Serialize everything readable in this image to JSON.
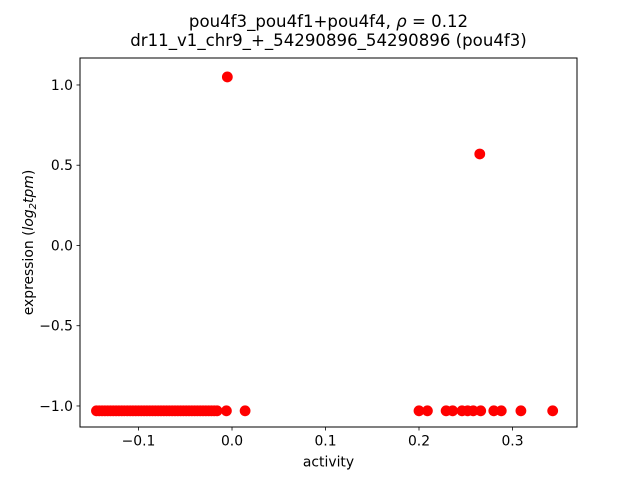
{
  "figure": {
    "title_line1_prefix": "pou4f3_pou4f1+pou4f4, ",
    "title_rho": "ρ",
    "title_line1_suffix": " = 0.12",
    "title_line2": "dr11_v1_chr9_+_54290896_54290896 (pou4f3)"
  },
  "chart_data": {
    "type": "scatter",
    "title": "pou4f3_pou4f1+pou4f4, ρ = 0.12\ndr11_v1_chr9_+_54290896_54290896 (pou4f3)",
    "xlabel": "activity",
    "ylabel": "expression (log2tpm)",
    "ylabel_parts": {
      "prefix": "expression (",
      "log": "log",
      "sub": "2",
      "tpm": "tpm",
      "suffix": ")"
    },
    "marker_color": "#ff0000",
    "marker_radius_px": 5.4,
    "grid": false,
    "legend_position": "none",
    "xlim": [
      -0.1626,
      0.369
    ],
    "ylim": [
      -1.131,
      1.168
    ],
    "x_ticks": [
      {
        "value": -0.1,
        "label": "−0.1"
      },
      {
        "value": 0.0,
        "label": "0.0"
      },
      {
        "value": 0.1,
        "label": "0.1"
      },
      {
        "value": 0.2,
        "label": "0.2"
      },
      {
        "value": 0.3,
        "label": "0.3"
      }
    ],
    "y_ticks": [
      {
        "value": 1.0,
        "label": "1.0"
      },
      {
        "value": 0.5,
        "label": "0.5"
      },
      {
        "value": 0.0,
        "label": "0.0"
      },
      {
        "value": -0.5,
        "label": "−0.5"
      },
      {
        "value": -1.0,
        "label": "−1.0"
      }
    ],
    "points": [
      [
        -0.145,
        -1.03
      ],
      [
        -0.142,
        -1.03
      ],
      [
        -0.139,
        -1.03
      ],
      [
        -0.136,
        -1.03
      ],
      [
        -0.133,
        -1.03
      ],
      [
        -0.13,
        -1.03
      ],
      [
        -0.127,
        -1.03
      ],
      [
        -0.124,
        -1.03
      ],
      [
        -0.121,
        -1.03
      ],
      [
        -0.118,
        -1.03
      ],
      [
        -0.115,
        -1.03
      ],
      [
        -0.112,
        -1.03
      ],
      [
        -0.109,
        -1.03
      ],
      [
        -0.106,
        -1.03
      ],
      [
        -0.103,
        -1.03
      ],
      [
        -0.1,
        -1.03
      ],
      [
        -0.097,
        -1.03
      ],
      [
        -0.094,
        -1.03
      ],
      [
        -0.091,
        -1.03
      ],
      [
        -0.088,
        -1.03
      ],
      [
        -0.085,
        -1.03
      ],
      [
        -0.082,
        -1.03
      ],
      [
        -0.079,
        -1.03
      ],
      [
        -0.076,
        -1.03
      ],
      [
        -0.073,
        -1.03
      ],
      [
        -0.07,
        -1.03
      ],
      [
        -0.067,
        -1.03
      ],
      [
        -0.064,
        -1.03
      ],
      [
        -0.061,
        -1.03
      ],
      [
        -0.058,
        -1.03
      ],
      [
        -0.055,
        -1.03
      ],
      [
        -0.052,
        -1.03
      ],
      [
        -0.049,
        -1.03
      ],
      [
        -0.046,
        -1.03
      ],
      [
        -0.043,
        -1.03
      ],
      [
        -0.04,
        -1.03
      ],
      [
        -0.037,
        -1.03
      ],
      [
        -0.034,
        -1.03
      ],
      [
        -0.031,
        -1.03
      ],
      [
        -0.028,
        -1.03
      ],
      [
        -0.025,
        -1.03
      ],
      [
        -0.022,
        -1.03
      ],
      [
        -0.019,
        -1.03
      ],
      [
        -0.016,
        -1.03
      ],
      [
        -0.006,
        -1.03
      ],
      [
        0.014,
        -1.03
      ],
      [
        0.2,
        -1.03
      ],
      [
        0.209,
        -1.03
      ],
      [
        0.229,
        -1.03
      ],
      [
        0.236,
        -1.03
      ],
      [
        0.246,
        -1.03
      ],
      [
        0.252,
        -1.03
      ],
      [
        0.258,
        -1.03
      ],
      [
        0.266,
        -1.03
      ],
      [
        0.28,
        -1.03
      ],
      [
        0.288,
        -1.03
      ],
      [
        0.309,
        -1.03
      ],
      [
        0.343,
        -1.03
      ],
      [
        -0.005,
        1.05
      ],
      [
        0.265,
        0.57
      ]
    ]
  }
}
